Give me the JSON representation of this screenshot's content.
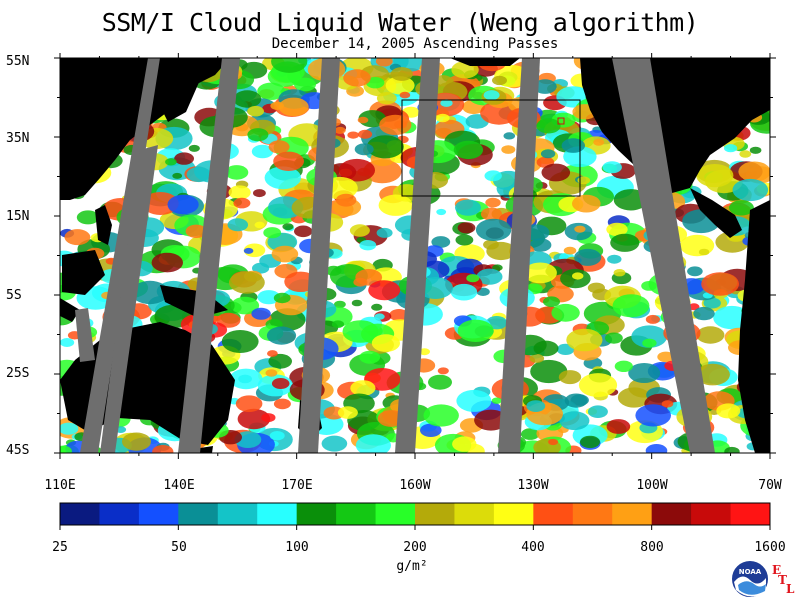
{
  "header": {
    "title": "SSM/I Cloud Liquid Water (Weng algorithm)",
    "subtitle": "December 14, 2005  Ascending Passes"
  },
  "map": {
    "lat_labels": [
      "55N",
      "35N",
      "15N",
      "5S",
      "25S",
      "45S"
    ],
    "lon_labels": [
      "110E",
      "140E",
      "170E",
      "160W",
      "130W",
      "100W",
      "70W"
    ],
    "no_data_color": "#6e6e6e",
    "land_color": "#000000",
    "ocean_clear_color": "#ffffff"
  },
  "colorbar": {
    "colors": [
      "#0a1a80",
      "#0a2ec8",
      "#1450ff",
      "#0a8f96",
      "#14c4c8",
      "#28ffff",
      "#0a8f0a",
      "#14c814",
      "#28ff28",
      "#b4aa0a",
      "#dcdc0a",
      "#ffff14",
      "#ff5014",
      "#ff7814",
      "#ffa014",
      "#8c0a0a",
      "#c80a0a",
      "#ff1414"
    ],
    "tick_labels": [
      "25",
      "50",
      "100",
      "200",
      "400",
      "800",
      "1600"
    ],
    "units": "g/m²"
  },
  "logo": {
    "text": "NOAA",
    "etl_letters": [
      "E",
      "T",
      "L"
    ]
  }
}
